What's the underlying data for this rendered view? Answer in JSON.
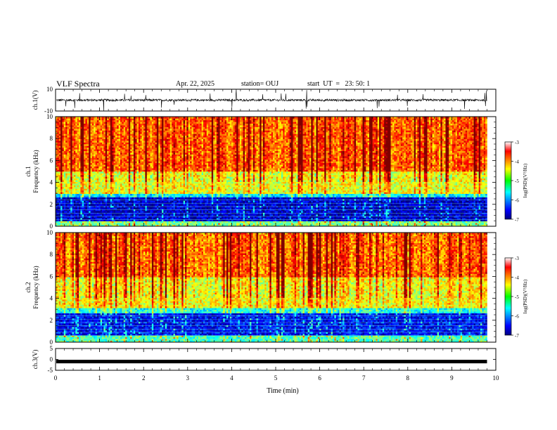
{
  "header": {
    "title": "VLF Spectra",
    "date": "Apr. 22, 2025",
    "station": "station= OUJ",
    "start": "start  UT  =   23: 50: 1"
  },
  "chart_data": [
    {
      "type": "line",
      "panel": "ch.1 waveform",
      "ylabel": "ch.1(V)",
      "ylim": [
        -10,
        10
      ],
      "y_ticks": [
        "10",
        "-10"
      ],
      "description_of_trace": "noisy waveform around baseline with impulsive spikes",
      "baseline": 0
    },
    {
      "type": "heatmap",
      "panel": "ch.1 spectrogram",
      "ylabel_top": "ch.1",
      "ylabel": "Frequency  (kHz)",
      "ylim": [
        0,
        10
      ],
      "y_ticks": [
        "0",
        "2",
        "4",
        "6",
        "8",
        "10"
      ],
      "colorbar": {
        "label": "log(PSD)(V²/Hz)",
        "range": [
          -7,
          -3
        ],
        "ticks": [
          "-3",
          "-4",
          "-5",
          "-6",
          "-7"
        ],
        "colormap": "jet"
      },
      "bands": [
        {
          "from_khz": 0,
          "to_khz": 0.5,
          "level": -5.0
        },
        {
          "from_khz": 0.5,
          "to_khz": 2.6,
          "level": -6.7
        },
        {
          "from_khz": 2.6,
          "to_khz": 3.0,
          "level": -5.6
        },
        {
          "from_khz": 3.0,
          "to_khz": 5.0,
          "level": -4.6
        },
        {
          "from_khz": 5.0,
          "to_khz": 10.0,
          "level": -3.9
        }
      ]
    },
    {
      "type": "heatmap",
      "panel": "ch.2 spectrogram",
      "ylabel_top": "ch.2",
      "ylabel": "Frequency  (kHz)",
      "ylim": [
        0,
        10
      ],
      "y_ticks": [
        "0",
        "2",
        "4",
        "6",
        "8",
        "10"
      ],
      "colorbar": {
        "label": "log(PSD)(V²/Hz)",
        "range": [
          -7,
          -3
        ],
        "ticks": [
          "-3",
          "-4",
          "-5",
          "-6",
          "-7"
        ],
        "colormap": "jet"
      },
      "bands": [
        {
          "from_khz": 0,
          "to_khz": 0.7,
          "level": -5.2
        },
        {
          "from_khz": 0.7,
          "to_khz": 2.7,
          "level": -6.5
        },
        {
          "from_khz": 2.7,
          "to_khz": 3.2,
          "level": -5.4
        },
        {
          "from_khz": 3.2,
          "to_khz": 6.0,
          "level": -4.5
        },
        {
          "from_khz": 6.0,
          "to_khz": 10.0,
          "level": -3.9
        }
      ]
    },
    {
      "type": "line",
      "panel": "ch.3 waveform",
      "ylabel": "ch.3(V)",
      "ylim": [
        -5,
        5
      ],
      "y_ticks": [
        "5",
        "0",
        "-5"
      ],
      "baseline": -1
    }
  ],
  "xaxis": {
    "label": "Time  (min)",
    "range": [
      0,
      10
    ],
    "data_end": 9.8,
    "ticks": [
      "0",
      "1",
      "2",
      "3",
      "4",
      "5",
      "6",
      "7",
      "8",
      "9",
      "10"
    ]
  },
  "colors": {
    "axis": "#000000",
    "background": "#ffffff"
  }
}
